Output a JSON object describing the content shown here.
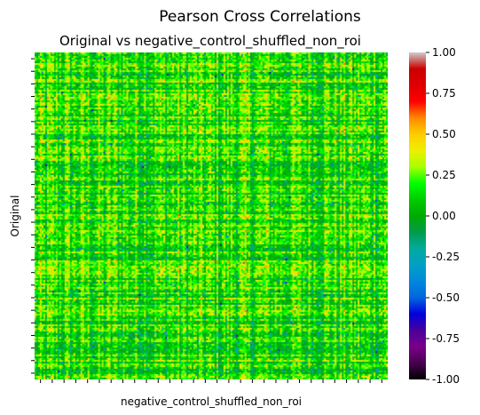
{
  "chart_data": {
    "type": "heatmap",
    "title": "Pearson Cross Correlations",
    "subtitle": "Original vs negative_control_shuffled_non_roi",
    "xlabel": "negative_control_shuffled_non_roi",
    "ylabel": "Original",
    "colorbar": {
      "vmin": -1.0,
      "vmax": 1.0,
      "ticks": [
        1.0,
        0.75,
        0.5,
        0.25,
        0.0,
        -0.25,
        -0.5,
        -0.75,
        -1.0
      ],
      "tick_labels": [
        "1.00",
        "0.75",
        "0.50",
        "0.25",
        "0.00",
        "-0.25",
        "-0.50",
        "-0.75",
        "-1.00"
      ],
      "colormap": "nipy_spectral",
      "stops": [
        [
          0.0,
          "#000000"
        ],
        [
          0.05,
          "#47004f"
        ],
        [
          0.1,
          "#7a008a"
        ],
        [
          0.15,
          "#4a009b"
        ],
        [
          0.2,
          "#0000dd"
        ],
        [
          0.25,
          "#0066dd"
        ],
        [
          0.3,
          "#0088dd"
        ],
        [
          0.35,
          "#00a0c4"
        ],
        [
          0.4,
          "#00aaa0"
        ],
        [
          0.45,
          "#009c4a"
        ],
        [
          0.5,
          "#00aa00"
        ],
        [
          0.55,
          "#00cc00"
        ],
        [
          0.6,
          "#00ff00"
        ],
        [
          0.65,
          "#a8ff00"
        ],
        [
          0.7,
          "#eeee00"
        ],
        [
          0.75,
          "#ffcc00"
        ],
        [
          0.8,
          "#ff8800"
        ],
        [
          0.85,
          "#ff0000"
        ],
        [
          0.9,
          "#dd0000"
        ],
        [
          0.95,
          "#cc0000"
        ],
        [
          1.0,
          "#cccccc"
        ]
      ]
    },
    "matrix_summary": {
      "dominant_range": [
        -0.2,
        0.45
      ],
      "typical_value": 0.15,
      "x_tick_count": 30,
      "y_tick_count": 26,
      "tick_labels_shown": false
    },
    "grid": false,
    "legend": "colorbar-right"
  }
}
